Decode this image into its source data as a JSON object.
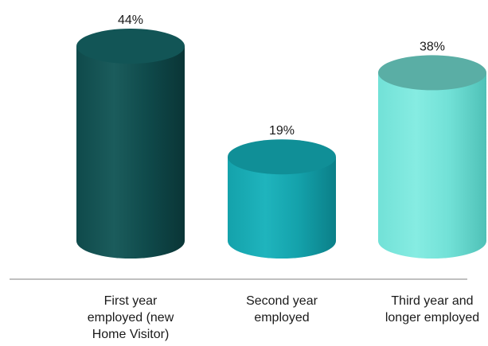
{
  "chart_data": {
    "type": "bar",
    "title": "",
    "xlabel": "",
    "ylabel": "",
    "ylim": [
      0,
      44
    ],
    "grid": false,
    "legend": "none",
    "categories": [
      [
        "First year",
        "employed (new",
        "Home Visitor)"
      ],
      [
        "Second year",
        "employed"
      ],
      [
        "Third year and",
        "longer employed"
      ]
    ],
    "values": [
      44,
      19,
      38
    ],
    "data_labels": [
      "44%",
      "19%",
      "38%"
    ],
    "colors": {
      "bars": [
        {
          "light": "#1b5c5c",
          "mid": "#0f4a4b",
          "dark": "#0a3536",
          "top": "#125556"
        },
        {
          "light": "#1fb4bd",
          "mid": "#14a2ab",
          "dark": "#0b7f88",
          "top": "#108f97"
        },
        {
          "light": "#86ece2",
          "mid": "#72e1d7",
          "dark": "#4fc1b7",
          "top": "#5aaea5"
        }
      ],
      "axis": "#9a9a9a",
      "text": "#1a1a1a"
    }
  }
}
